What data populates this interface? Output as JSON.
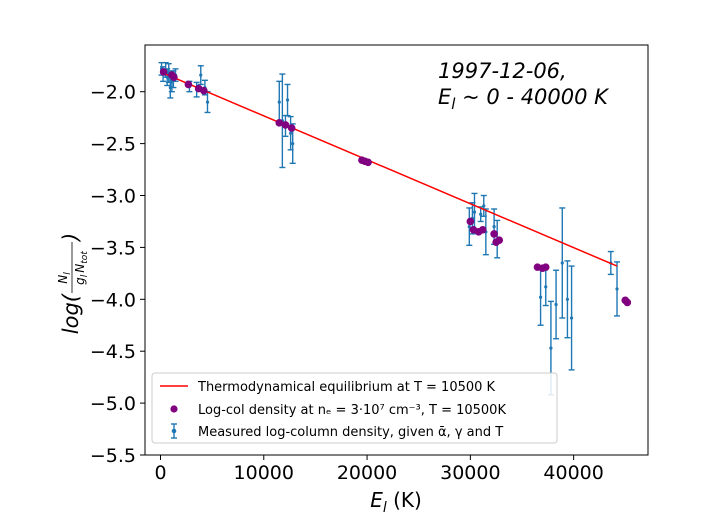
{
  "chart_data": {
    "type": "scatter",
    "title": "",
    "xlabel_main": "E",
    "xlabel_sub": "l",
    "xlabel_unit": " (K)",
    "ylabel_prefix": "log(",
    "ylabel_num_main": "N",
    "ylabel_num_sub": "l",
    "ylabel_den_g": "g",
    "ylabel_den_gsub": "l",
    "ylabel_den_N": "N",
    "ylabel_den_Nsub": "tot",
    "ylabel_suffix": ")",
    "xlim": [
      -1500,
      47200
    ],
    "ylim": [
      -5.5,
      -1.55
    ],
    "x_ticks": [
      0,
      10000,
      20000,
      30000,
      40000
    ],
    "x_tick_labels": [
      "0",
      "10000",
      "20000",
      "30000",
      "40000"
    ],
    "y_ticks": [
      -2.0,
      -2.5,
      -3.0,
      -3.5,
      -4.0,
      -4.5,
      -5.0,
      -5.5
    ],
    "y_tick_labels": [
      "−2.0",
      "−2.5",
      "−3.0",
      "−3.5",
      "−4.0",
      "−4.5",
      "−5.0",
      "−5.5"
    ],
    "annotation_line1": "1997-12-06,",
    "annotation_line2_main": "E",
    "annotation_line2_sub": "l",
    "annotation_line2_rest": " ~ 0 - 40000 K",
    "legend": {
      "placement": "lower-left",
      "fit_label": "Thermodynamical equilibrium at T = 10500 K",
      "model_label": "Log-col density at nₑ = 3·10⁷ cm⁻³, T = 10500K",
      "measured_label": "Measured log-column density, given ᾱ, γ and T"
    },
    "series": [
      {
        "name": "fit",
        "kind": "line",
        "color": "#ff0000",
        "x": [
          0,
          44200
        ],
        "y": [
          -1.81,
          -3.68
        ]
      },
      {
        "name": "model",
        "kind": "points",
        "color": "#800080",
        "x": [
          300,
          1100,
          1300,
          2700,
          3700,
          4200,
          11500,
          12100,
          12700,
          19500,
          19800,
          20100,
          30000,
          30300,
          30800,
          31200,
          32300,
          32500,
          32800,
          36500,
          37000,
          37300,
          45000,
          45200
        ],
        "y": [
          -1.81,
          -1.84,
          -1.86,
          -1.93,
          -1.97,
          -1.99,
          -2.3,
          -2.32,
          -2.35,
          -2.66,
          -2.67,
          -2.68,
          -3.25,
          -3.33,
          -3.35,
          -3.33,
          -3.37,
          -3.45,
          -3.43,
          -3.69,
          -3.7,
          -3.69,
          -4.01,
          -4.03
        ]
      },
      {
        "name": "measured",
        "kind": "errorbar",
        "color": "#1f77b4",
        "x": [
          100,
          250,
          500,
          650,
          800,
          950,
          1100,
          1250,
          1450,
          2800,
          3500,
          3900,
          4300,
          4550,
          11500,
          11800,
          12100,
          12300,
          12600,
          12800,
          29900,
          30200,
          30400,
          31000,
          31300,
          31500,
          32300,
          32600,
          36800,
          37300,
          37800,
          38300,
          38900,
          39400,
          39800,
          43600,
          44200
        ],
        "y": [
          -1.78,
          -1.83,
          -1.79,
          -1.86,
          -1.82,
          -1.96,
          -1.9,
          -1.88,
          -1.84,
          -1.95,
          -1.98,
          -1.84,
          -1.96,
          -2.1,
          -2.1,
          -2.28,
          -2.33,
          -2.08,
          -2.4,
          -2.5,
          -3.3,
          -3.22,
          -3.16,
          -3.18,
          -3.1,
          -3.35,
          -3.3,
          -3.42,
          -3.98,
          -3.88,
          -4.47,
          -4.05,
          -3.65,
          -4.0,
          -4.18,
          -3.65,
          -3.9
        ],
        "err": [
          0.06,
          0.07,
          0.07,
          0.08,
          0.09,
          0.1,
          0.1,
          0.08,
          0.06,
          0.05,
          0.07,
          0.09,
          0.07,
          0.1,
          0.2,
          0.45,
          0.1,
          0.15,
          0.16,
          0.19,
          0.18,
          0.15,
          0.18,
          0.07,
          0.1,
          0.22,
          0.17,
          0.18,
          0.27,
          0.18,
          0.45,
          0.33,
          0.53,
          0.37,
          0.5,
          0.11,
          0.26
        ]
      }
    ]
  }
}
